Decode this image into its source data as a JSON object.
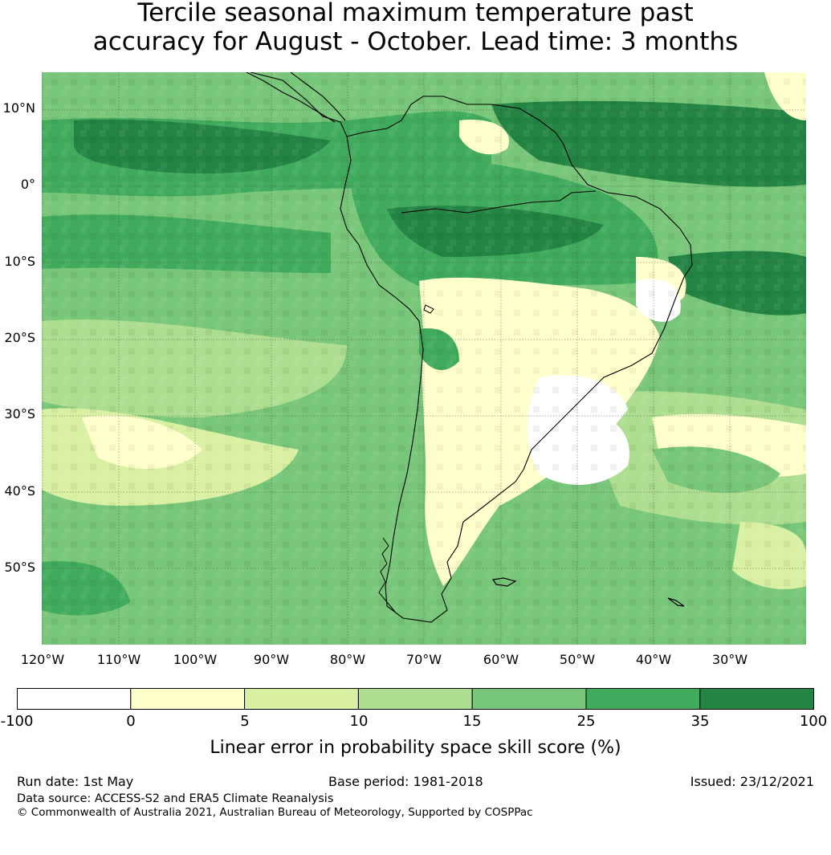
{
  "title": {
    "line1": "Tercile seasonal maximum temperature past",
    "line2": "accuracy for August - October. Lead time: 3 months"
  },
  "axes": {
    "lat_labels": [
      "10°N",
      "0°",
      "10°S",
      "20°S",
      "30°S",
      "40°S",
      "50°S"
    ],
    "lon_labels": [
      "120°W",
      "110°W",
      "100°W",
      "90°W",
      "80°W",
      "70°W",
      "60°W",
      "50°W",
      "40°W",
      "30°W"
    ],
    "lon_range": [
      -125,
      -25
    ],
    "lat_range": [
      -60,
      15
    ]
  },
  "colorbar": {
    "ticks": [
      "-100",
      "0",
      "5",
      "10",
      "15",
      "25",
      "35",
      "100"
    ],
    "colors": [
      "#ffffff",
      "#ffffcc",
      "#d9f0a3",
      "#addd8e",
      "#78c679",
      "#41ab5d",
      "#238443"
    ],
    "label": "Linear error in probability space skill score (%)"
  },
  "footer": {
    "run_date": "Run date: 1st May",
    "base_period": "Base period: 1981-2018",
    "issued": "Issued: 23/12/2021",
    "data_source": "Data source: ACCESS-S2 and ERA5 Climate Reanalysis",
    "copyright": "© Commonwealth of Australia 2021, Australian Bureau of Meteorology, Supported by COSPPac"
  }
}
